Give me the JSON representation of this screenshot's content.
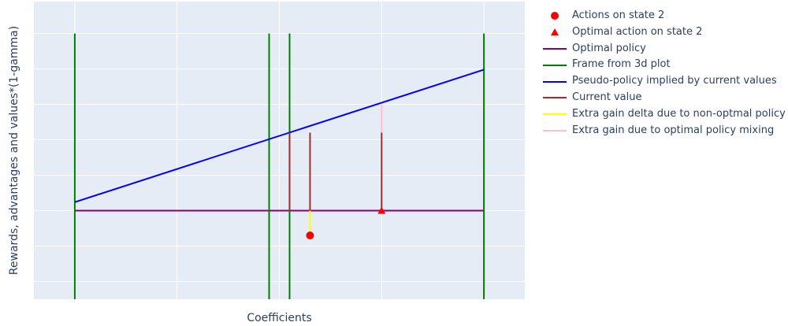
{
  "chart_data": {
    "type": "line",
    "title": "",
    "xlabel": "Coefficients",
    "ylabel": "Rewards, advantages and values*(1-gamma)",
    "xlim": [
      -0.2,
      2.2
    ],
    "ylim": [
      -1.25,
      2.95
    ],
    "show_tick_labels": false,
    "grid": true,
    "legend_position": "right",
    "series": [
      {
        "name": "Actions on state 2",
        "kind": "markers",
        "marker": "circle",
        "color": "#ff0000",
        "x": [
          1.15
        ],
        "y": [
          -0.35
        ]
      },
      {
        "name": "Optimal action on state 2",
        "kind": "markers",
        "marker": "triangle-up",
        "color": "#ff0000",
        "x": [
          1.5
        ],
        "y": [
          0.0
        ]
      },
      {
        "name": "Optimal policy",
        "kind": "line",
        "color": "#800080",
        "segments": [
          {
            "x": [
              0,
              2
            ],
            "y": [
              0,
              0
            ]
          }
        ]
      },
      {
        "name": "Frame from 3d plot",
        "kind": "line",
        "color": "#008000",
        "segments": [
          {
            "x": [
              0,
              0
            ],
            "y": [
              -1.25,
              2.5
            ]
          },
          {
            "x": [
              0.95,
              0.95
            ],
            "y": [
              -1.25,
              2.5
            ]
          },
          {
            "x": [
              1.05,
              1.05
            ],
            "y": [
              -1.25,
              2.5
            ]
          },
          {
            "x": [
              2,
              2
            ],
            "y": [
              -1.25,
              2.5
            ]
          }
        ]
      },
      {
        "name": "Pseudo-policy implied by current values",
        "kind": "line",
        "color": "#0000ff",
        "segments": [
          {
            "x": [
              0,
              2
            ],
            "y": [
              0.12,
              1.99
            ]
          }
        ]
      },
      {
        "name": "Current value",
        "kind": "line",
        "color": "#a52a2a",
        "segments": [
          {
            "x": [
              1.05,
              1.05
            ],
            "y": [
              0,
              1.1
            ]
          },
          {
            "x": [
              1.15,
              1.15
            ],
            "y": [
              0,
              1.1
            ]
          },
          {
            "x": [
              1.5,
              1.5
            ],
            "y": [
              0,
              1.1
            ]
          }
        ]
      },
      {
        "name": "Extra gain delta due to non-optmal policy",
        "kind": "line",
        "color": "#ffff00",
        "segments": [
          {
            "x": [
              1.15,
              1.15
            ],
            "y": [
              -0.35,
              0
            ]
          }
        ]
      },
      {
        "name": "Extra gain due to optimal policy mixing",
        "kind": "line",
        "color": "#ffc0cb",
        "segments": [
          {
            "x": [
              1.5,
              1.5
            ],
            "y": [
              1.1,
              1.5
            ]
          }
        ]
      }
    ]
  }
}
